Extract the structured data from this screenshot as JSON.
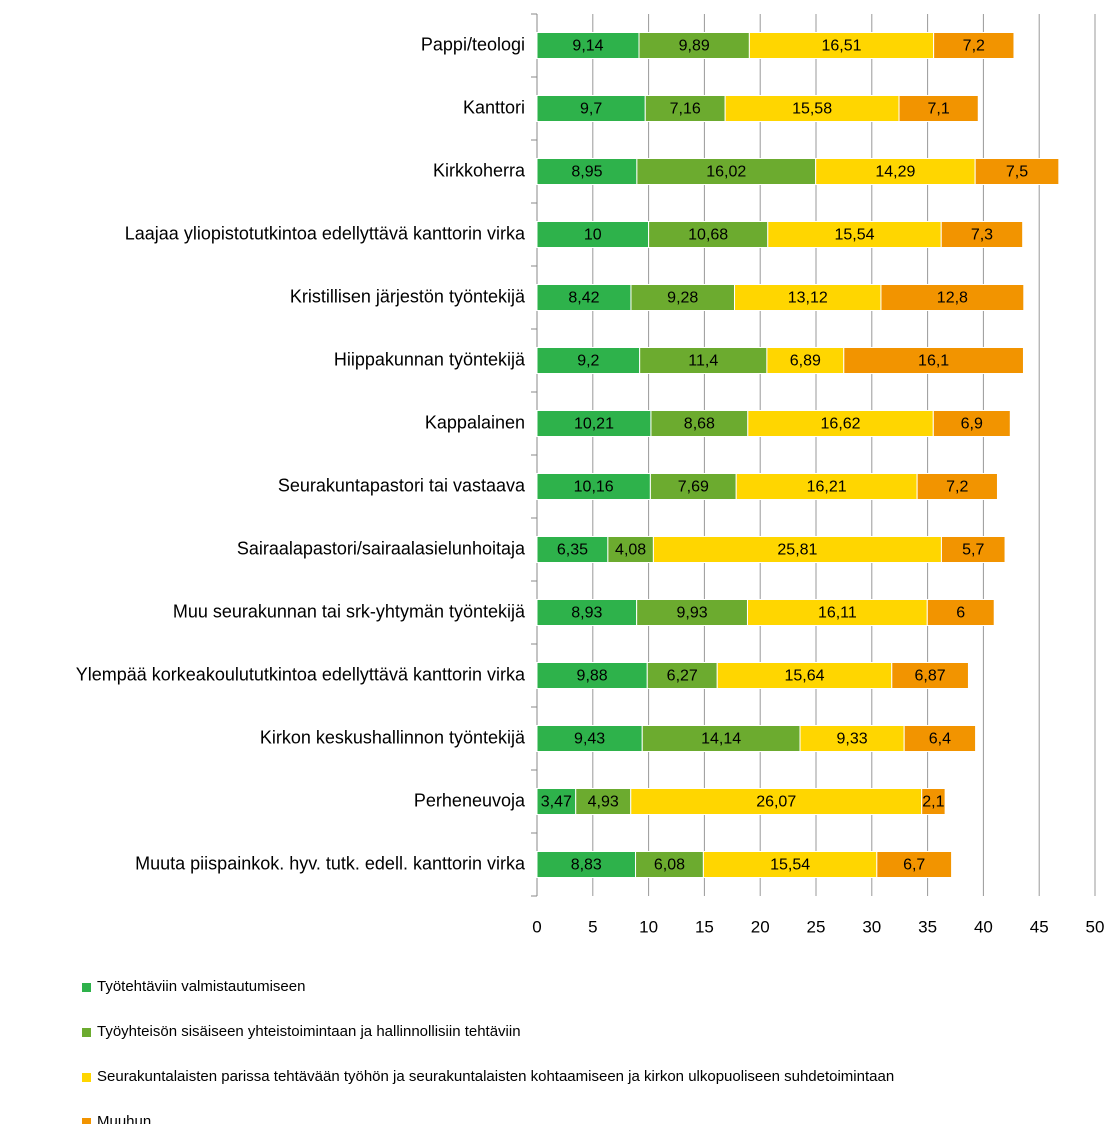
{
  "chart_data": {
    "type": "stacked_bar_horizontal",
    "categories": [
      "Pappi/teologi",
      "Kanttori",
      "Kirkkoherra",
      "Laajaa yliopistotutkintoa edellyttävä kanttorin virka",
      "Kristillisen järjestön työntekijä",
      "Hiippakunnan työntekijä",
      "Kappalainen",
      "Seurakuntapastori tai vastaava",
      "Sairaalapastori/sairaalasielunhoitaja",
      "Muu seurakunnan tai srk-yhtymän työntekijä",
      "Ylempää korkeakoulututkintoa edellyttävä kanttorin virka",
      "Kirkon keskushallinnon työntekijä",
      "Perheneuvoja",
      "Muuta piispainkok. hyv. tutk. edell. kanttorin virka"
    ],
    "series": [
      {
        "name": "Työtehtäviin valmistautumiseen",
        "color": "#2eb24b",
        "values": [
          9.14,
          9.7,
          8.95,
          10,
          8.42,
          9.2,
          10.21,
          10.16,
          6.35,
          8.93,
          9.88,
          9.43,
          3.47,
          8.83
        ],
        "value_labels": [
          "9,14",
          "9,7",
          "8,95",
          "10",
          "8,42",
          "9,2",
          "10,21",
          "10,16",
          "6,35",
          "8,93",
          "9,88",
          "9,43",
          "3,47",
          "8,83"
        ]
      },
      {
        "name": "Työyhteisön sisäiseen yhteistoimintaan ja hallinnollisiin tehtäviin",
        "color": "#6cab2f",
        "values": [
          9.89,
          7.16,
          16.02,
          10.68,
          9.28,
          11.4,
          8.68,
          7.69,
          4.08,
          9.93,
          6.27,
          14.14,
          4.93,
          6.08
        ],
        "value_labels": [
          "9,89",
          "7,16",
          "16,02",
          "10,68",
          "9,28",
          "11,4",
          "8,68",
          "7,69",
          "4,08",
          "9,93",
          "6,27",
          "14,14",
          "4,93",
          "6,08"
        ]
      },
      {
        "name": "Seurakuntalaisten parissa tehtävään työhön ja seurakuntalaisten kohtaamiseen ja kirkon ulkopuoliseen suhdetoimintaan",
        "color": "#ffd600",
        "values": [
          16.51,
          15.58,
          14.29,
          15.54,
          13.12,
          6.89,
          16.62,
          16.21,
          25.81,
          16.11,
          15.64,
          9.33,
          26.07,
          15.54
        ],
        "value_labels": [
          "16,51",
          "15,58",
          "14,29",
          "15,54",
          "13,12",
          "6,89",
          "16,62",
          "16,21",
          "25,81",
          "16,11",
          "15,64",
          "9,33",
          "26,07",
          "15,54"
        ]
      },
      {
        "name": "Muuhun",
        "color": "#f29400",
        "values": [
          7.2,
          7.1,
          7.5,
          7.3,
          12.8,
          16.1,
          6.9,
          7.2,
          5.7,
          6,
          6.87,
          6.4,
          2.1,
          6.7
        ],
        "value_labels": [
          "7,2",
          "7,1",
          "7,5",
          "7,3",
          "12,8",
          "16,1",
          "6,9",
          "7,2",
          "5,7",
          "6",
          "6,87",
          "6,4",
          "2,1",
          "6,7"
        ]
      }
    ],
    "xlim": [
      0,
      50
    ],
    "xticks": [
      0,
      5,
      10,
      15,
      20,
      25,
      30,
      35,
      40,
      45,
      50
    ],
    "grid": true,
    "legend": "bottom"
  }
}
